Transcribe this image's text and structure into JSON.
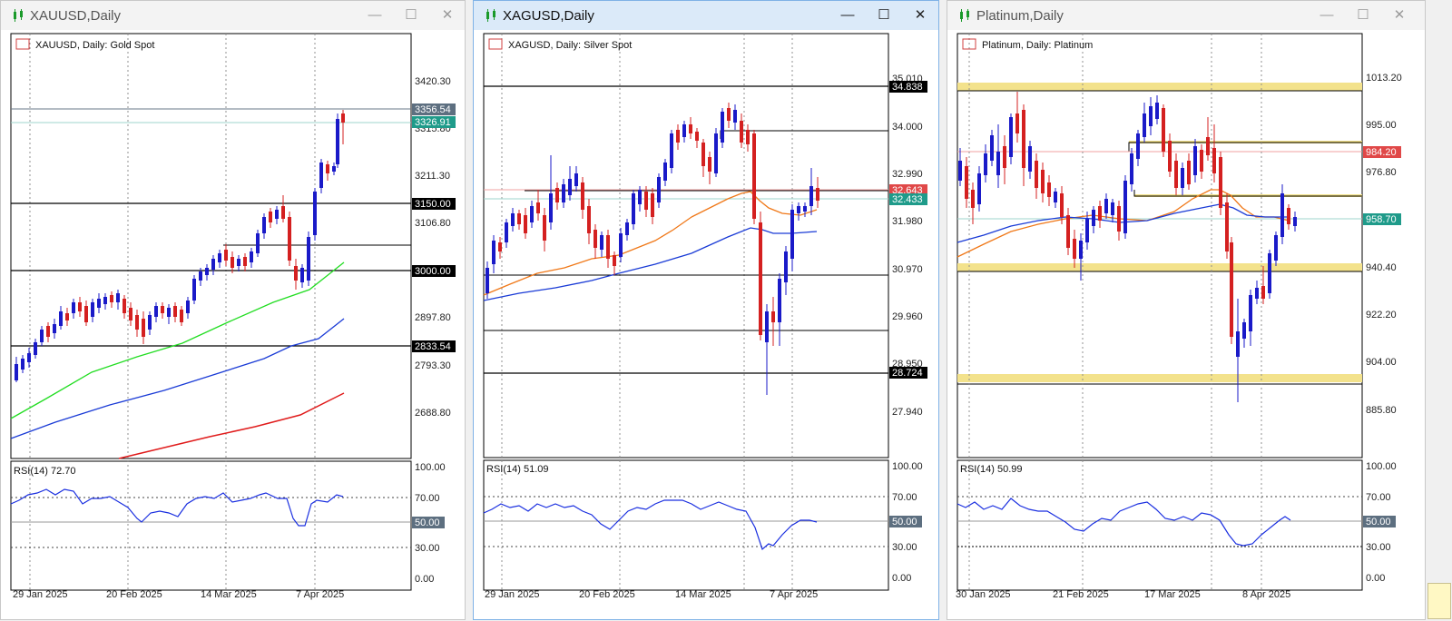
{
  "windows": [
    {
      "title": "XAUUSD,Daily",
      "legend": "XAUUSD, Daily:  Gold Spot",
      "rsi_label": "RSI(14) 72.70",
      "y_ticks": [
        "3420.30",
        "3315.80",
        "3211.30",
        "3106.80",
        "2897.80",
        "2793.30",
        "2688.80"
      ],
      "rsi_ticks": [
        "100.00",
        "70.00",
        "30.00",
        "0.00"
      ],
      "x_ticks": [
        "29 Jan 2025",
        "20 Feb 2025",
        "14 Mar 2025",
        "7 Apr 2025"
      ],
      "level_tags": [
        {
          "text": "3356.54",
          "color": "#5d6f80"
        },
        {
          "text": "3326.91",
          "color": "#1f9b8a"
        },
        {
          "text": "3150.00",
          "color": "#000000"
        },
        {
          "text": "3000.00",
          "color": "#000000"
        },
        {
          "text": "2833.54",
          "color": "#000000"
        }
      ],
      "rsi_tag": "50.00"
    },
    {
      "title": "XAGUSD,Daily",
      "legend": "XAGUSD, Daily:  Silver Spot",
      "rsi_label": "RSI(14) 51.09",
      "y_ticks": [
        "35.010",
        "34.000",
        "32.990",
        "31.980",
        "30.970",
        "29.960",
        "28.950",
        "27.940"
      ],
      "rsi_ticks": [
        "100.00",
        "70.00",
        "30.00",
        "0.00"
      ],
      "x_ticks": [
        "29 Jan 2025",
        "20 Feb 2025",
        "14 Mar 2025",
        "7 Apr 2025"
      ],
      "level_tags": [
        {
          "text": "34.838",
          "color": "#000000"
        },
        {
          "text": "32.643",
          "color": "#e04848"
        },
        {
          "text": "32.433",
          "color": "#1f9b8a"
        },
        {
          "text": "28.724",
          "color": "#000000"
        }
      ],
      "rsi_tag": "50.00"
    },
    {
      "title": "Platinum,Daily",
      "legend": "Platinum, Daily:  Platinum",
      "rsi_label": "RSI(14) 50.99",
      "y_ticks": [
        "1013.20",
        "995.00",
        "976.80",
        "940.40",
        "922.20",
        "904.00",
        "885.80"
      ],
      "rsi_ticks": [
        "100.00",
        "70.00",
        "30.00",
        "0.00"
      ],
      "x_ticks": [
        "30 Jan 2025",
        "21 Feb 2025",
        "17 Mar 2025",
        "8 Apr 2025"
      ],
      "level_tags": [
        {
          "text": "984.20",
          "color": "#e04848"
        },
        {
          "text": "958.70",
          "color": "#1f9b8a"
        }
      ],
      "rsi_tag": "50.00"
    }
  ],
  "colors": {
    "bull": "#1a1ac8",
    "bear": "#d42020",
    "ma_green": "#22dd22",
    "ma_blue": "#1a3bd6",
    "ma_red": "#e01c1c",
    "ma_orange": "#f07818",
    "rsi": "#1a2fe0",
    "zone": "#f3e28c",
    "bid": "#19a290",
    "ask": "#e04848"
  },
  "icons": {
    "window": "candlestick-icon",
    "minimize": "minimize-icon",
    "maximize": "maximize-icon",
    "close": "close-icon"
  }
}
